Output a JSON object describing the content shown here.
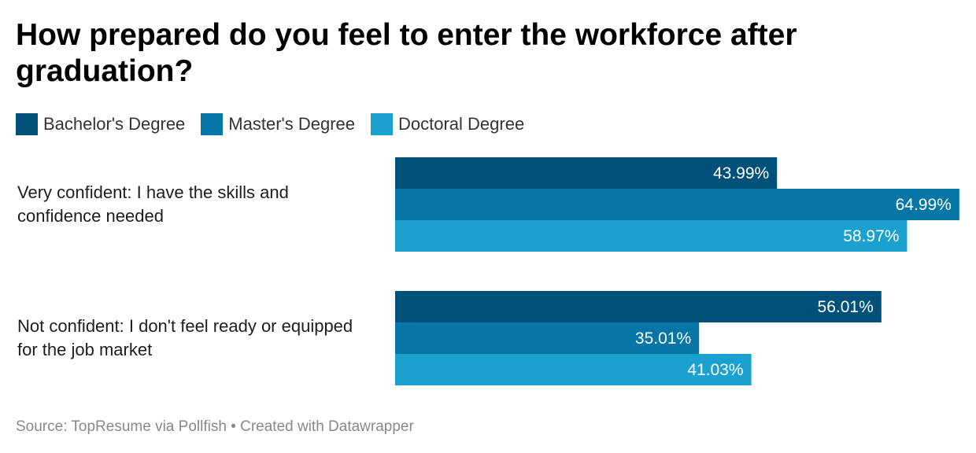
{
  "title": "How prepared do you feel to enter the workforce after graduation?",
  "footer": "Source: TopResume via Pollfish • Created with Datawrapper",
  "colors": {
    "bachelor": "#00517a",
    "master": "#0576a5",
    "doctoral": "#1aa1d0"
  },
  "chart_data": {
    "type": "bar",
    "orientation": "horizontal",
    "grouped": true,
    "categories": [
      [
        "Very confident: I have the skills and",
        "confidence needed"
      ],
      [
        "Not confident: I don't feel ready or equipped",
        "for the job market"
      ]
    ],
    "series": [
      {
        "name": "Bachelor's Degree",
        "values": [
          43.99,
          56.01
        ],
        "color": "#00517a"
      },
      {
        "name": "Master's Degree",
        "values": [
          64.99,
          35.01
        ],
        "color": "#0576a5"
      },
      {
        "name": "Doctoral Degree",
        "values": [
          58.97,
          41.03
        ],
        "color": "#1aa1d0"
      }
    ],
    "value_suffix": "%",
    "xlim": [
      0,
      65
    ],
    "legend": "top-left",
    "grid": false
  }
}
